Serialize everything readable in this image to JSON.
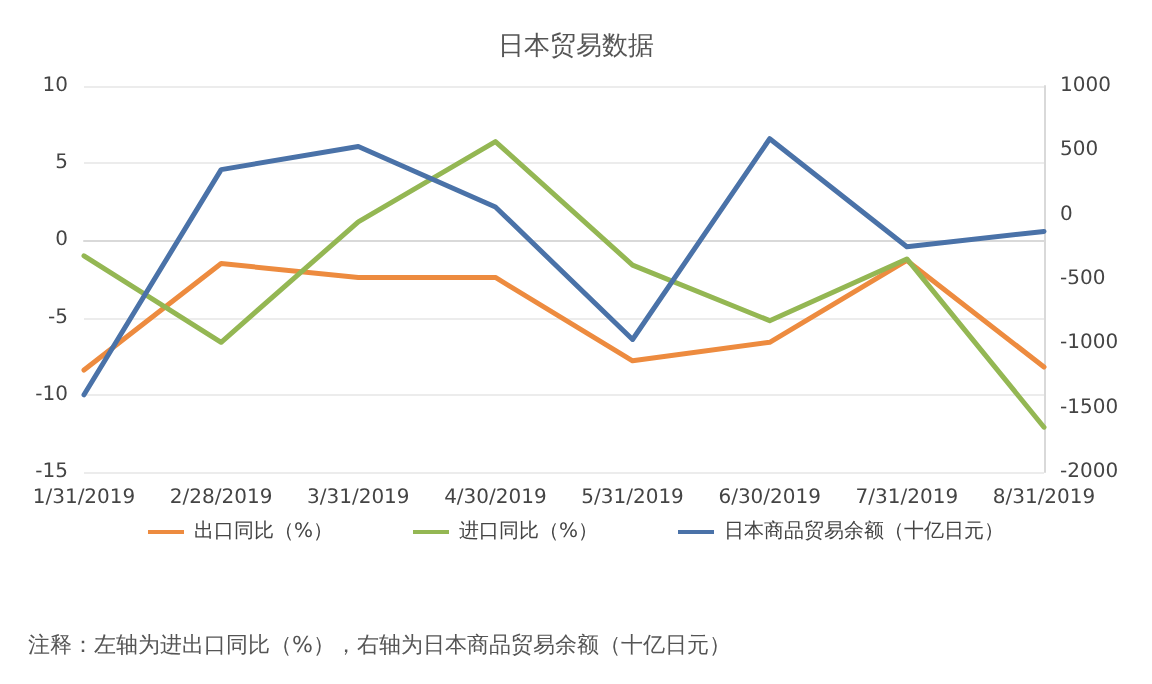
{
  "chart_data": {
    "type": "line",
    "title": "日本贸易数据",
    "categories": [
      "1/31/2019",
      "2/28/2019",
      "3/31/2019",
      "4/30/2019",
      "5/31/2019",
      "6/30/2019",
      "7/31/2019",
      "8/31/2019"
    ],
    "series": [
      {
        "name": "出口同比（%）",
        "color": "#ed8b3f",
        "values": [
          -8.4,
          -1.5,
          -2.4,
          -2.4,
          -7.8,
          -6.6,
          -1.3,
          -8.2
        ]
      },
      {
        "name": "进口同比（%）",
        "color": "#94b753",
        "values": [
          -1,
          -6.6,
          1.2,
          6.4,
          -1.6,
          -5.2,
          -1.2,
          -12.1
        ]
      },
      {
        "name": "日本商品贸易余额（十亿日元）",
        "color": "#4a72a8",
        "axis": "y2",
        "values": [
          -1400,
          350,
          530,
          60,
          -970,
          590,
          -250,
          -130
        ]
      }
    ],
    "ylim": [
      -15,
      10
    ],
    "yticks": [
      -15,
      -10,
      -5,
      0,
      5,
      10
    ],
    "y2lim": [
      -2000,
      1000
    ],
    "y2ticks": [
      -2000,
      -1500,
      -1000,
      -500,
      0,
      500,
      1000
    ],
    "grid": "y",
    "legend": "bottom",
    "marker": "none",
    "line_style": "solid",
    "annotations": [
      "注释：左轴为进出口同比（%），右轴为日本商品贸易余额（十亿日元）"
    ]
  }
}
